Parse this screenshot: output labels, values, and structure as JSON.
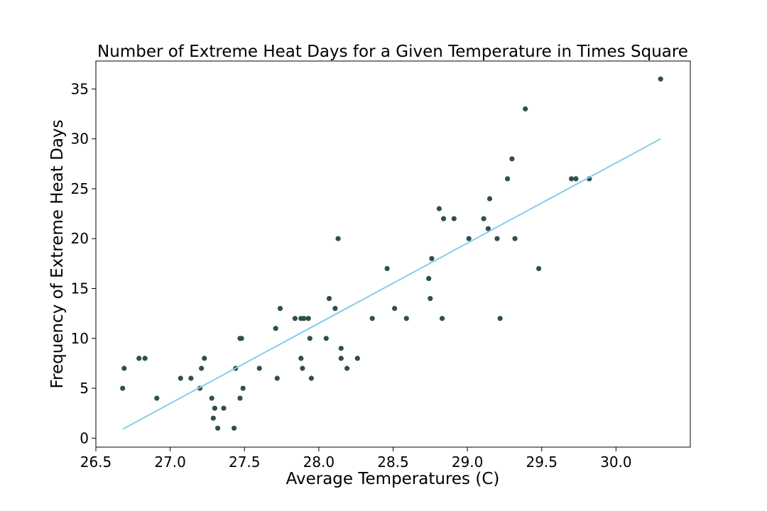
{
  "chart_data": {
    "type": "scatter",
    "title": "Number of Extreme Heat Days for a Given Temperature in Times Square",
    "xlabel": "Average Temperatures (C)",
    "ylabel": "Frequency of Extreme Heat Days",
    "xlim": [
      26.5,
      30.5
    ],
    "ylim": [
      -0.9,
      37.8
    ],
    "xticks": [
      26.5,
      27.0,
      27.5,
      28.0,
      28.5,
      29.0,
      29.5,
      30.0
    ],
    "xtick_labels": [
      "26.5",
      "27.0",
      "27.5",
      "28.0",
      "28.5",
      "29.0",
      "29.5",
      "30.0"
    ],
    "yticks": [
      0,
      5,
      10,
      15,
      20,
      25,
      30,
      35
    ],
    "ytick_labels": [
      "0",
      "5",
      "10",
      "15",
      "20",
      "25",
      "30",
      "35"
    ],
    "grid": false,
    "legend": "none",
    "colors": {
      "points": "#2f4f4f",
      "trendline": "#87ceeb"
    },
    "series": [
      {
        "kind": "points",
        "points": [
          [
            26.68,
            5
          ],
          [
            26.69,
            7
          ],
          [
            26.79,
            8
          ],
          [
            26.83,
            8
          ],
          [
            26.91,
            4
          ],
          [
            27.07,
            6
          ],
          [
            27.14,
            6
          ],
          [
            27.2,
            5
          ],
          [
            27.21,
            7
          ],
          [
            27.23,
            8
          ],
          [
            27.28,
            4
          ],
          [
            27.29,
            2
          ],
          [
            27.3,
            3
          ],
          [
            27.32,
            1
          ],
          [
            27.36,
            3
          ],
          [
            27.43,
            1
          ],
          [
            27.44,
            7
          ],
          [
            27.47,
            10
          ],
          [
            27.47,
            4
          ],
          [
            27.48,
            10
          ],
          [
            27.49,
            5
          ],
          [
            27.6,
            7
          ],
          [
            27.71,
            11
          ],
          [
            27.72,
            6
          ],
          [
            27.74,
            13
          ],
          [
            27.84,
            12
          ],
          [
            27.88,
            12
          ],
          [
            27.88,
            8
          ],
          [
            27.89,
            7
          ],
          [
            27.9,
            12
          ],
          [
            27.93,
            12
          ],
          [
            27.94,
            10
          ],
          [
            27.95,
            6
          ],
          [
            28.05,
            10
          ],
          [
            28.07,
            14
          ],
          [
            28.11,
            13
          ],
          [
            28.13,
            20
          ],
          [
            28.15,
            9
          ],
          [
            28.15,
            8
          ],
          [
            28.19,
            7
          ],
          [
            28.26,
            8
          ],
          [
            28.36,
            12
          ],
          [
            28.46,
            17
          ],
          [
            28.51,
            13
          ],
          [
            28.59,
            12
          ],
          [
            28.74,
            16
          ],
          [
            28.75,
            14
          ],
          [
            28.76,
            18
          ],
          [
            28.81,
            23
          ],
          [
            28.83,
            12
          ],
          [
            28.84,
            22
          ],
          [
            28.91,
            22
          ],
          [
            29.01,
            20
          ],
          [
            29.11,
            22
          ],
          [
            29.14,
            21
          ],
          [
            29.15,
            24
          ],
          [
            29.2,
            20
          ],
          [
            29.22,
            12
          ],
          [
            29.27,
            26
          ],
          [
            29.3,
            28
          ],
          [
            29.32,
            20
          ],
          [
            29.39,
            33
          ],
          [
            29.48,
            17
          ],
          [
            29.7,
            26
          ],
          [
            29.73,
            26
          ],
          [
            29.82,
            26
          ],
          [
            30.3,
            36
          ]
        ]
      },
      {
        "kind": "trendline",
        "points": [
          [
            26.68,
            0.9
          ],
          [
            30.3,
            30.0
          ]
        ]
      }
    ]
  }
}
